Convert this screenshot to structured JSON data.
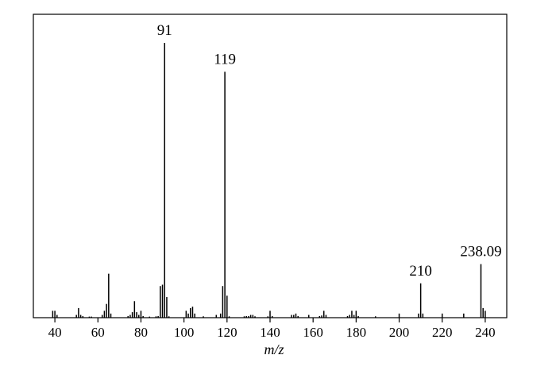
{
  "chart_data": {
    "type": "bar",
    "subtype": "mass-spectrum-stick",
    "title": "",
    "xlabel": "m/z",
    "ylabel": "",
    "xlim": [
      30,
      250
    ],
    "ylim": [
      0,
      100
    ],
    "x_ticks": [
      40,
      60,
      80,
      100,
      120,
      140,
      160,
      180,
      200,
      220,
      240
    ],
    "grid": false,
    "legend": "none",
    "bar_color": "#000000",
    "annotations": [
      {
        "x": 91,
        "label": "91"
      },
      {
        "x": 119,
        "label": "119"
      },
      {
        "x": 210,
        "label": "210"
      },
      {
        "x": 238.09,
        "label": "238.09"
      }
    ],
    "peaks": [
      {
        "x": 39,
        "y": 2.5
      },
      {
        "x": 40,
        "y": 2.5
      },
      {
        "x": 41,
        "y": 1
      },
      {
        "x": 50,
        "y": 1
      },
      {
        "x": 51,
        "y": 3.5
      },
      {
        "x": 52,
        "y": 1
      },
      {
        "x": 53,
        "y": 0.6
      },
      {
        "x": 56,
        "y": 0.4
      },
      {
        "x": 57,
        "y": 0.4
      },
      {
        "x": 62,
        "y": 1
      },
      {
        "x": 63,
        "y": 2.5
      },
      {
        "x": 64,
        "y": 5
      },
      {
        "x": 65,
        "y": 16
      },
      {
        "x": 66,
        "y": 1.5
      },
      {
        "x": 74,
        "y": 0.6
      },
      {
        "x": 75,
        "y": 1
      },
      {
        "x": 76,
        "y": 2
      },
      {
        "x": 77,
        "y": 6
      },
      {
        "x": 78,
        "y": 2
      },
      {
        "x": 79,
        "y": 1
      },
      {
        "x": 80,
        "y": 2.5
      },
      {
        "x": 81,
        "y": 0.6
      },
      {
        "x": 84,
        "y": 0.4
      },
      {
        "x": 87,
        "y": 0.5
      },
      {
        "x": 88,
        "y": 0.6
      },
      {
        "x": 89,
        "y": 11.5
      },
      {
        "x": 90,
        "y": 12
      },
      {
        "x": 91,
        "y": 100
      },
      {
        "x": 92,
        "y": 7.5
      },
      {
        "x": 93,
        "y": 0.5
      },
      {
        "x": 101,
        "y": 2.5
      },
      {
        "x": 102,
        "y": 1.5
      },
      {
        "x": 103,
        "y": 3.5
      },
      {
        "x": 104,
        "y": 4
      },
      {
        "x": 105,
        "y": 1.5
      },
      {
        "x": 109,
        "y": 0.5
      },
      {
        "x": 115,
        "y": 1
      },
      {
        "x": 117,
        "y": 1.5
      },
      {
        "x": 118,
        "y": 11.5
      },
      {
        "x": 119,
        "y": 89.5
      },
      {
        "x": 120,
        "y": 8
      },
      {
        "x": 121,
        "y": 0.5
      },
      {
        "x": 128,
        "y": 0.5
      },
      {
        "x": 129,
        "y": 0.6
      },
      {
        "x": 130,
        "y": 0.6
      },
      {
        "x": 131,
        "y": 1
      },
      {
        "x": 132,
        "y": 1
      },
      {
        "x": 133,
        "y": 0.5
      },
      {
        "x": 139,
        "y": 0.5
      },
      {
        "x": 140,
        "y": 2.5
      },
      {
        "x": 141,
        "y": 0.6
      },
      {
        "x": 150,
        "y": 1
      },
      {
        "x": 151,
        "y": 1
      },
      {
        "x": 152,
        "y": 1.5
      },
      {
        "x": 153,
        "y": 0.6
      },
      {
        "x": 158,
        "y": 1
      },
      {
        "x": 163,
        "y": 0.6
      },
      {
        "x": 164,
        "y": 0.8
      },
      {
        "x": 165,
        "y": 2.5
      },
      {
        "x": 166,
        "y": 1
      },
      {
        "x": 176,
        "y": 0.6
      },
      {
        "x": 177,
        "y": 1
      },
      {
        "x": 178,
        "y": 2.5
      },
      {
        "x": 179,
        "y": 1
      },
      {
        "x": 180,
        "y": 2.5
      },
      {
        "x": 181,
        "y": 0.6
      },
      {
        "x": 189,
        "y": 0.5
      },
      {
        "x": 200,
        "y": 1.5
      },
      {
        "x": 209,
        "y": 1.5
      },
      {
        "x": 210,
        "y": 12.5
      },
      {
        "x": 211,
        "y": 1.5
      },
      {
        "x": 220,
        "y": 1.5
      },
      {
        "x": 230,
        "y": 1.5
      },
      {
        "x": 238,
        "y": 19.5
      },
      {
        "x": 239,
        "y": 3.5
      },
      {
        "x": 240,
        "y": 2.5
      }
    ]
  }
}
